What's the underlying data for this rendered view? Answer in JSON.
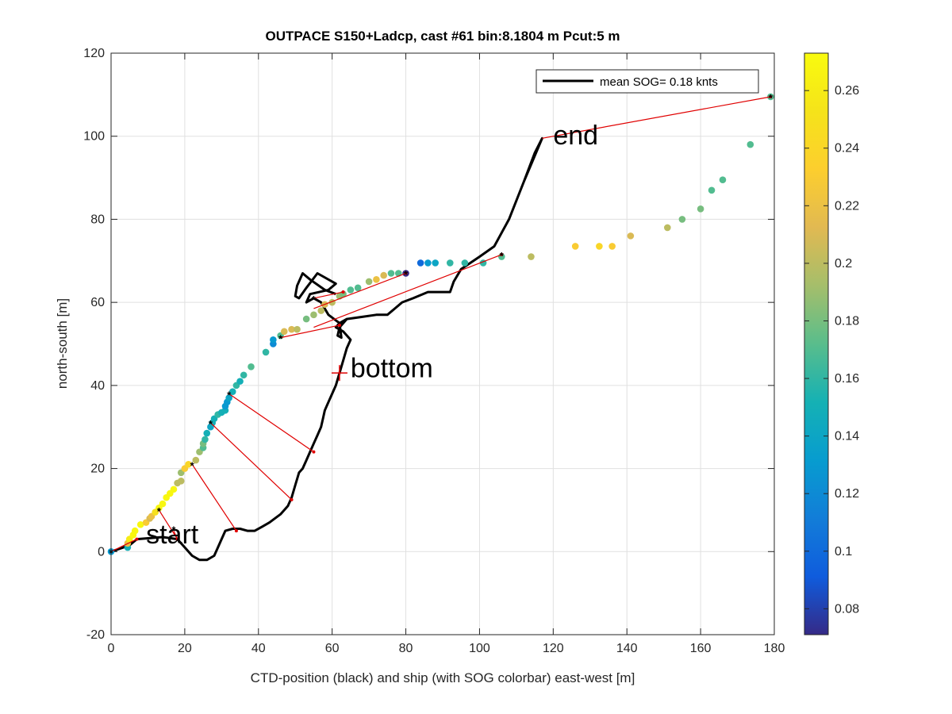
{
  "chart_data": {
    "type": "scatter",
    "title": "OUTPACE S150+Ladcp, cast #61 bin:8.1804 m  Pcut:5 m",
    "xlabel": "CTD-position (black) and ship (with SOG colorbar) east-west [m]",
    "ylabel": "north-south [m]",
    "xlim": [
      0,
      180
    ],
    "ylim": [
      -20,
      120
    ],
    "xticks": [
      0,
      20,
      40,
      60,
      80,
      100,
      120,
      140,
      160,
      180
    ],
    "yticks": [
      -20,
      0,
      20,
      40,
      60,
      80,
      100,
      120
    ],
    "grid": true,
    "legend": {
      "label": "mean SOG=  0.18 knts",
      "placement": "top-right"
    },
    "colorbar": {
      "ticks": [
        0.08,
        0.1,
        0.12,
        0.14,
        0.16,
        0.18,
        0.2,
        0.22,
        0.24,
        0.26
      ],
      "range": [
        0.071,
        0.273
      ],
      "colormap": "parula"
    },
    "annotations": [
      {
        "text": "start",
        "x": 9.5,
        "y": 2
      },
      {
        "text": "bottom",
        "x": 65,
        "y": 42
      },
      {
        "text": "end",
        "x": 120,
        "y": 98
      }
    ],
    "bottom_marker": {
      "x": 62,
      "y": 43
    },
    "ctd_track": [
      [
        0,
        0
      ],
      [
        5,
        1.5
      ],
      [
        7,
        3
      ],
      [
        14,
        3.5
      ],
      [
        18,
        3
      ],
      [
        20,
        1
      ],
      [
        22,
        -1
      ],
      [
        24,
        -2
      ],
      [
        26,
        -2
      ],
      [
        28,
        -1
      ],
      [
        29,
        1
      ],
      [
        30,
        3
      ],
      [
        31,
        5
      ],
      [
        33,
        5.5
      ],
      [
        35,
        5.5
      ],
      [
        37,
        5
      ],
      [
        39,
        5
      ],
      [
        41,
        6
      ],
      [
        43,
        7
      ],
      [
        46,
        9
      ],
      [
        48,
        11
      ],
      [
        49,
        13
      ],
      [
        50,
        16
      ],
      [
        51,
        19
      ],
      [
        52,
        20
      ],
      [
        53,
        22
      ],
      [
        54,
        24
      ],
      [
        55,
        26
      ],
      [
        56,
        28
      ],
      [
        57,
        30
      ],
      [
        57.5,
        32
      ],
      [
        58,
        34
      ],
      [
        59,
        36
      ],
      [
        60,
        38
      ],
      [
        61,
        40
      ],
      [
        62,
        43
      ],
      [
        63,
        46
      ],
      [
        64,
        49
      ],
      [
        65,
        51
      ],
      [
        63,
        53
      ],
      [
        61,
        54
      ],
      [
        62,
        55
      ],
      [
        64,
        56
      ],
      [
        68,
        56.5
      ],
      [
        72,
        57
      ],
      [
        75,
        57
      ],
      [
        77,
        58.5
      ],
      [
        79,
        60
      ],
      [
        82,
        61
      ],
      [
        86,
        62.5
      ],
      [
        92,
        62.5
      ],
      [
        93,
        65
      ],
      [
        95,
        68
      ],
      [
        100,
        71
      ],
      [
        104,
        73.5
      ],
      [
        108,
        80
      ],
      [
        112,
        89
      ],
      [
        115,
        96
      ],
      [
        117,
        99.5
      ],
      [
        117,
        99.5
      ],
      [
        112,
        89
      ],
      [
        108,
        80
      ],
      [
        104,
        73.5
      ],
      [
        100,
        71
      ],
      [
        95,
        68
      ],
      [
        93,
        65
      ],
      [
        92,
        62.5
      ],
      [
        86,
        62.5
      ],
      [
        82,
        61
      ],
      [
        79,
        60
      ],
      [
        77,
        58.5
      ],
      [
        75,
        57
      ],
      [
        72,
        57
      ],
      [
        68,
        56.5
      ],
      [
        64,
        56
      ],
      [
        62,
        54
      ],
      [
        61.5,
        52
      ],
      [
        62.5,
        51.5
      ],
      [
        62,
        55
      ],
      [
        59,
        57
      ],
      [
        57,
        60
      ],
      [
        55,
        61
      ],
      [
        53,
        60
      ],
      [
        54,
        62
      ],
      [
        59,
        63
      ],
      [
        61,
        64.5
      ],
      [
        56,
        67
      ],
      [
        53,
        63.5
      ],
      [
        51,
        61
      ],
      [
        50,
        61.5
      ],
      [
        50.5,
        64
      ],
      [
        52,
        67
      ],
      [
        54,
        65.5
      ],
      [
        58,
        63
      ],
      [
        61,
        62
      ]
    ],
    "ship_track": [
      {
        "x": 0,
        "y": 0,
        "v": 0.13
      },
      {
        "x": 4.5,
        "y": 1,
        "v": 0.15
      },
      {
        "x": 4.5,
        "y": 2,
        "v": 0.22
      },
      {
        "x": 5,
        "y": 3,
        "v": 0.26
      },
      {
        "x": 6,
        "y": 4,
        "v": 0.27
      },
      {
        "x": 6.5,
        "y": 5,
        "v": 0.27
      },
      {
        "x": 8,
        "y": 6.5,
        "v": 0.27
      },
      {
        "x": 9.5,
        "y": 7,
        "v": 0.23
      },
      {
        "x": 10.5,
        "y": 8,
        "v": 0.21
      },
      {
        "x": 11,
        "y": 8.5,
        "v": 0.22
      },
      {
        "x": 12,
        "y": 9.5,
        "v": 0.25
      },
      {
        "x": 13,
        "y": 10.5,
        "v": 0.27
      },
      {
        "x": 14,
        "y": 11.5,
        "v": 0.27
      },
      {
        "x": 15,
        "y": 13,
        "v": 0.27
      },
      {
        "x": 16,
        "y": 14,
        "v": 0.27
      },
      {
        "x": 17,
        "y": 15,
        "v": 0.27
      },
      {
        "x": 18,
        "y": 16.5,
        "v": 0.2
      },
      {
        "x": 19,
        "y": 17,
        "v": 0.2
      },
      {
        "x": 19,
        "y": 19,
        "v": 0.19
      },
      {
        "x": 20,
        "y": 20,
        "v": 0.23
      },
      {
        "x": 21,
        "y": 21,
        "v": 0.24
      },
      {
        "x": 23,
        "y": 22,
        "v": 0.2
      },
      {
        "x": 24,
        "y": 24,
        "v": 0.19
      },
      {
        "x": 25,
        "y": 25,
        "v": 0.17
      },
      {
        "x": 25,
        "y": 26,
        "v": 0.18
      },
      {
        "x": 25.5,
        "y": 27,
        "v": 0.16
      },
      {
        "x": 26,
        "y": 28.5,
        "v": 0.15
      },
      {
        "x": 27,
        "y": 30,
        "v": 0.14
      },
      {
        "x": 27.5,
        "y": 31,
        "v": 0.15
      },
      {
        "x": 28,
        "y": 32,
        "v": 0.15
      },
      {
        "x": 29,
        "y": 33,
        "v": 0.16
      },
      {
        "x": 30,
        "y": 33.5,
        "v": 0.15
      },
      {
        "x": 31,
        "y": 34,
        "v": 0.15
      },
      {
        "x": 31,
        "y": 35,
        "v": 0.13
      },
      {
        "x": 31.5,
        "y": 36,
        "v": 0.13
      },
      {
        "x": 32,
        "y": 37,
        "v": 0.14
      },
      {
        "x": 33,
        "y": 38.5,
        "v": 0.15
      },
      {
        "x": 34,
        "y": 40,
        "v": 0.16
      },
      {
        "x": 35,
        "y": 41,
        "v": 0.15
      },
      {
        "x": 36,
        "y": 42.5,
        "v": 0.16
      },
      {
        "x": 38,
        "y": 44.5,
        "v": 0.17
      },
      {
        "x": 42,
        "y": 48,
        "v": 0.16
      },
      {
        "x": 44,
        "y": 50,
        "v": 0.12
      },
      {
        "x": 44,
        "y": 51,
        "v": 0.13
      },
      {
        "x": 46,
        "y": 52,
        "v": 0.17
      },
      {
        "x": 47,
        "y": 53,
        "v": 0.21
      },
      {
        "x": 49,
        "y": 53.5,
        "v": 0.21
      },
      {
        "x": 50.5,
        "y": 53.5,
        "v": 0.2
      },
      {
        "x": 53,
        "y": 56,
        "v": 0.18
      },
      {
        "x": 55,
        "y": 57,
        "v": 0.19
      },
      {
        "x": 57,
        "y": 58,
        "v": 0.2
      },
      {
        "x": 58,
        "y": 59.5,
        "v": 0.21
      },
      {
        "x": 60,
        "y": 60,
        "v": 0.2
      },
      {
        "x": 62,
        "y": 61.5,
        "v": 0.19
      },
      {
        "x": 63,
        "y": 62,
        "v": 0.18
      },
      {
        "x": 65,
        "y": 63,
        "v": 0.17
      },
      {
        "x": 67,
        "y": 63.5,
        "v": 0.17
      },
      {
        "x": 70,
        "y": 65,
        "v": 0.19
      },
      {
        "x": 72,
        "y": 65.5,
        "v": 0.22
      },
      {
        "x": 74,
        "y": 66.5,
        "v": 0.21
      },
      {
        "x": 76,
        "y": 67,
        "v": 0.17
      },
      {
        "x": 78,
        "y": 67,
        "v": 0.17
      },
      {
        "x": 80,
        "y": 67,
        "v": 0.07
      },
      {
        "x": 84,
        "y": 69.5,
        "v": 0.1
      },
      {
        "x": 86,
        "y": 69.5,
        "v": 0.13
      },
      {
        "x": 88,
        "y": 69.5,
        "v": 0.14
      },
      {
        "x": 92,
        "y": 69.5,
        "v": 0.16
      },
      {
        "x": 96,
        "y": 69.5,
        "v": 0.16
      },
      {
        "x": 101,
        "y": 69.5,
        "v": 0.16
      },
      {
        "x": 106,
        "y": 71,
        "v": 0.17
      },
      {
        "x": 114,
        "y": 71,
        "v": 0.2
      },
      {
        "x": 126,
        "y": 73.5,
        "v": 0.23
      },
      {
        "x": 132.5,
        "y": 73.5,
        "v": 0.24
      },
      {
        "x": 136,
        "y": 73.5,
        "v": 0.23
      },
      {
        "x": 141,
        "y": 76,
        "v": 0.21
      },
      {
        "x": 151,
        "y": 78,
        "v": 0.2
      },
      {
        "x": 155,
        "y": 80,
        "v": 0.18
      },
      {
        "x": 160,
        "y": 82.5,
        "v": 0.18
      },
      {
        "x": 163,
        "y": 87,
        "v": 0.17
      },
      {
        "x": 166,
        "y": 89.5,
        "v": 0.17
      },
      {
        "x": 173.5,
        "y": 98,
        "v": 0.17
      },
      {
        "x": 179,
        "y": 109.5,
        "v": 0.17
      }
    ],
    "connectors": [
      [
        [
          0,
          0
        ],
        [
          7,
          3
        ]
      ],
      [
        [
          13,
          10
        ],
        [
          18,
          3
        ]
      ],
      [
        [
          17,
          5
        ],
        [
          18,
          3
        ]
      ],
      [
        [
          22,
          21
        ],
        [
          34,
          5
        ]
      ],
      [
        [
          27,
          31
        ],
        [
          49,
          12.5
        ]
      ],
      [
        [
          32,
          38
        ],
        [
          55,
          24
        ]
      ],
      [
        [
          46,
          51.5
        ],
        [
          62,
          54.5
        ]
      ],
      [
        [
          55,
          54
        ],
        [
          106,
          71.5
        ]
      ],
      [
        [
          55,
          58.5
        ],
        [
          80,
          67
        ]
      ],
      [
        [
          55,
          61
        ],
        [
          63,
          62.5
        ]
      ],
      [
        [
          117,
          99.5
        ],
        [
          179,
          109.5
        ]
      ]
    ],
    "star_points": [
      [
        0,
        0
      ],
      [
        17,
        5.5
      ],
      [
        13,
        10
      ],
      [
        22,
        21
      ],
      [
        27,
        31
      ],
      [
        32,
        38
      ],
      [
        46,
        51.5
      ],
      [
        55,
        61
      ],
      [
        80,
        67
      ],
      [
        106,
        71.5
      ],
      [
        179,
        109.5
      ]
    ]
  }
}
